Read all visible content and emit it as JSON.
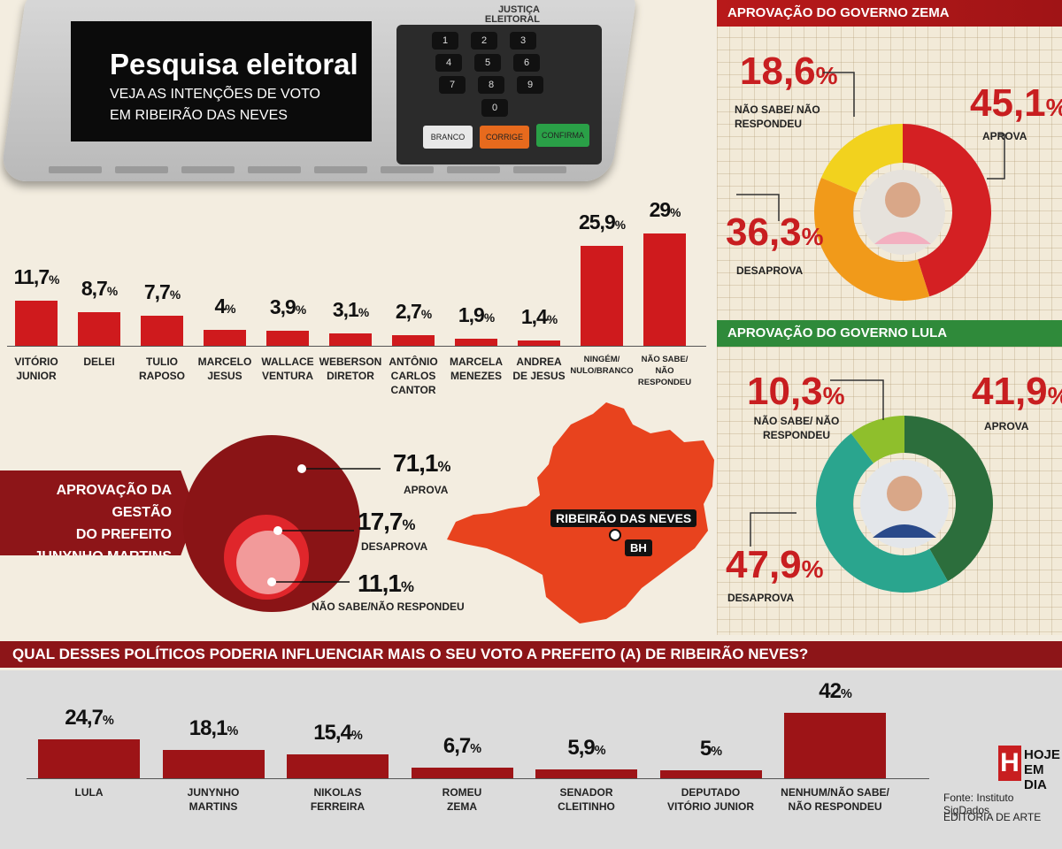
{
  "header": {
    "title": "Pesquisa eleitoral",
    "subtitle_line1": "VEJA AS INTENÇÕES DE VOTO",
    "subtitle_line2": "EM RIBEIRÃO DAS NEVES",
    "urn_label_line1": "JUSTIÇA",
    "urn_label_line2": "ELEITORAL",
    "keys": [
      "1",
      "2",
      "3",
      "4",
      "5",
      "6",
      "7",
      "8",
      "9",
      "0"
    ],
    "btn_branco": "BRANCO",
    "btn_corrige": "CORRIGE",
    "btn_confirma": "CONFIRMA"
  },
  "chart_data": [
    {
      "type": "bar",
      "categories": [
        "VITÓRIO JUNIOR",
        "DELEI",
        "TULIO RAPOSO",
        "MARCELO JESUS",
        "WALLACE VENTURA",
        "WEBERSON DIRETOR",
        "ANTÔNIO CARLOS CANTOR",
        "MARCELA MENEZES",
        "ANDREA DE JESUS",
        "NINGÉM/ NULO/BRANCO",
        "NÃO SABE/ NÃO RESPONDEU"
      ],
      "values": [
        11.7,
        8.7,
        7.7,
        4,
        3.9,
        3.1,
        2.7,
        1.9,
        1.4,
        25.9,
        29
      ],
      "labels": [
        "11,7",
        "8,7",
        "7,7",
        "4",
        "3,9",
        "3,1",
        "2,7",
        "1,9",
        "1,4",
        "25,9",
        "29"
      ],
      "label_lines": [
        [
          "VITÓRIO",
          "JUNIOR"
        ],
        [
          "DELEI"
        ],
        [
          "TULIO",
          "RAPOSO"
        ],
        [
          "MARCELO",
          "JESUS"
        ],
        [
          "WALLACE",
          "VENTURA"
        ],
        [
          "WEBERSON",
          "DIRETOR"
        ],
        [
          "ANTÔNIO",
          "CARLOS",
          "CANTOR"
        ],
        [
          "MARCELA",
          "MENEZES"
        ],
        [
          "ANDREA",
          "DE JESUS"
        ],
        [
          "NINGÉM/",
          "NULO/BRANCO"
        ],
        [
          "NÃO SABE/",
          "NÃO RESPONDEU"
        ]
      ],
      "unit": "%"
    },
    {
      "type": "pie",
      "title": "APROVAÇÃO DO GOVERNO ZEMA",
      "slices": [
        {
          "name": "APROVA",
          "value": 45.1,
          "label": "45,1",
          "color": "#d42023"
        },
        {
          "name": "DESAPROVA",
          "value": 36.3,
          "label": "36,3",
          "color": "#f19a1a"
        },
        {
          "name": "NÃO SABE/ NÃO RESPONDEU",
          "value": 18.6,
          "label": "18,6",
          "color": "#f2d21e"
        }
      ]
    },
    {
      "type": "pie",
      "title": "APROVAÇÃO DO GOVERNO LULA",
      "slices": [
        {
          "name": "APROVA",
          "value": 41.9,
          "label": "41,9",
          "color": "#2c6e3c"
        },
        {
          "name": "DESAPROVA",
          "value": 47.9,
          "label": "47,9",
          "color": "#2aa58e"
        },
        {
          "name": "NÃO SABE/ NÃO RESPONDEU",
          "value": 10.3,
          "label": "10,3",
          "color": "#8fbf2c"
        }
      ]
    },
    {
      "type": "pie",
      "title": "APROVAÇÃO DA GESTÃO DO PREFEITO JUNYNHO MARTINS",
      "slices": [
        {
          "name": "APROVA",
          "value": 71.1,
          "label": "71,1",
          "color": "#8a1416"
        },
        {
          "name": "DESAPROVA",
          "value": 17.7,
          "label": "17,7",
          "color": "#e0262b"
        },
        {
          "name": "NÃO SABE/NÃO RESPONDEU",
          "value": 11.1,
          "label": "11,1",
          "color": "#f29a9a"
        }
      ]
    },
    {
      "type": "bar",
      "title": "QUAL DESSES POLÍTICOS PODERIA INFLUENCIAR MAIS O SEU VOTO A PREFEITO (A) DE RIBEIRÃO NEVES?",
      "categories": [
        "LULA",
        "JUNYNHO MARTINS",
        "NIKOLAS FERREIRA",
        "ROMEU ZEMA",
        "SENADOR CLEITINHO",
        "DEPUTADO VITÓRIO JUNIOR",
        "NENHUM/NÃO SABE/ NÃO RESPONDEU"
      ],
      "values": [
        24.7,
        18.1,
        15.4,
        6.7,
        5.9,
        5,
        42
      ],
      "labels": [
        "24,7",
        "18,1",
        "15,4",
        "6,7",
        "5,9",
        "5",
        "42"
      ],
      "label_lines": [
        [
          "LULA"
        ],
        [
          "JUNYNHO",
          "MARTINS"
        ],
        [
          "NIKOLAS",
          "FERREIRA"
        ],
        [
          "ROMEU",
          "ZEMA"
        ],
        [
          "SENADOR",
          "CLEITINHO"
        ],
        [
          "DEPUTADO",
          "VITÓRIO JUNIOR"
        ],
        [
          "NENHUM/NÃO SABE/",
          "NÃO RESPONDEU"
        ]
      ],
      "unit": "%"
    }
  ],
  "zema": {
    "title": "APROVAÇÃO DO GOVERNO ZEMA"
  },
  "lula": {
    "title": "APROVAÇÃO DO GOVERNO LULA"
  },
  "mayor": {
    "title_line1": "APROVAÇÃO DA GESTÃO",
    "title_line2": "DO PREFEITO",
    "title_line3": "JUNYNHO MARTINS"
  },
  "map": {
    "city_label": "RIBEIRÃO DAS NEVES",
    "bh_label": "BH",
    "fill": "#e8431e"
  },
  "pct_sign": "%",
  "footer": {
    "logo_letter": "H",
    "logo_line1": "HOJE",
    "logo_line2": "EM DIA",
    "source": "Fonte: Instituto SigDados",
    "credit": "EDITORIA DE ARTE"
  }
}
